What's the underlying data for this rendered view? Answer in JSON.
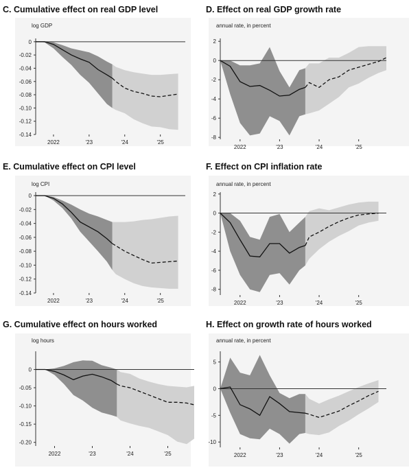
{
  "chart_data": [
    {
      "id": "C",
      "type": "line",
      "title": "C. Cumulative effect on real GDP level",
      "ylabel": "log GDP",
      "ylim": [
        -0.14,
        0.005
      ],
      "yticks": [
        0,
        -0.02,
        -0.04,
        -0.06,
        -0.08,
        -0.1,
        -0.12,
        -0.14
      ],
      "ytick_labels": [
        "0",
        "-0.02",
        "-0.04",
        "-0.06",
        "-0.08",
        "-0.10",
        "-0.12",
        "-0.14"
      ],
      "xlim": [
        2021.5,
        2025.7
      ],
      "xticks": [
        2022,
        2023,
        2024,
        2025
      ],
      "xtick_labels": [
        "2022",
        "'23",
        "'24",
        "'25"
      ],
      "split_x": 2023.65,
      "x": [
        2021.5,
        2021.75,
        2022,
        2022.25,
        2022.5,
        2022.75,
        2023,
        2023.25,
        2023.5,
        2023.65,
        2023.75,
        2024,
        2024.25,
        2024.5,
        2024.75,
        2025,
        2025.25,
        2025.5
      ],
      "series": [
        {
          "role": "estimate",
          "values": [
            0,
            0,
            -0.004,
            -0.012,
            -0.02,
            -0.026,
            -0.031,
            -0.042,
            -0.05,
            -0.055,
            -0.06,
            -0.07,
            -0.075,
            -0.078,
            -0.082,
            -0.083,
            -0.081,
            -0.079
          ]
        },
        {
          "role": "upper",
          "values": [
            0,
            0,
            -0.001,
            -0.005,
            -0.01,
            -0.013,
            -0.016,
            -0.022,
            -0.03,
            -0.034,
            -0.038,
            -0.043,
            -0.046,
            -0.048,
            -0.05,
            -0.05,
            -0.049,
            -0.048
          ]
        },
        {
          "role": "lower",
          "values": [
            0,
            -0.001,
            -0.01,
            -0.023,
            -0.035,
            -0.05,
            -0.062,
            -0.078,
            -0.094,
            -0.1,
            -0.103,
            -0.108,
            -0.117,
            -0.123,
            -0.128,
            -0.129,
            -0.132,
            -0.133
          ]
        }
      ]
    },
    {
      "id": "D",
      "type": "line",
      "title": "D. Effect on real GDP growth rate",
      "ylabel": "annual rate, in percent",
      "ylim": [
        -8.2,
        2.3
      ],
      "yticks": [
        2,
        0,
        -2,
        -4,
        -6,
        -8
      ],
      "ytick_labels": [
        "2",
        "0",
        "-2",
        "-4",
        "-6",
        "-8"
      ],
      "xlim": [
        2021.5,
        2025.7
      ],
      "xticks": [
        2022,
        2023,
        2024,
        2025
      ],
      "xtick_labels": [
        "2022",
        "'23",
        "'24",
        "'25"
      ],
      "split_x": 2023.65,
      "x": [
        2021.5,
        2021.75,
        2022,
        2022.25,
        2022.5,
        2022.75,
        2023,
        2023.25,
        2023.5,
        2023.65,
        2023.75,
        2024,
        2024.25,
        2024.5,
        2024.75,
        2025,
        2025.25,
        2025.5,
        2025.7
      ],
      "series": [
        {
          "role": "estimate",
          "values": [
            0,
            -0.6,
            -2.2,
            -2.7,
            -2.6,
            -3.1,
            -3.7,
            -3.6,
            -3.0,
            -2.8,
            -2.3,
            -2.8,
            -2.0,
            -1.7,
            -1.0,
            -0.7,
            -0.4,
            -0.1,
            0.3
          ]
        },
        {
          "role": "upper",
          "values": [
            0,
            0,
            -0.5,
            -0.5,
            -0.3,
            1.4,
            -1.1,
            -2.8,
            -1.0,
            -0.8,
            -0.3,
            -0.3,
            0.3,
            0.3,
            0.8,
            1.4,
            1.5,
            1.5,
            1.5
          ]
        },
        {
          "role": "lower",
          "values": [
            0,
            -3.5,
            -6.5,
            -7.8,
            -7.6,
            -5.8,
            -6.3,
            -7.8,
            -5.8,
            -5.6,
            -5.5,
            -5.2,
            -4.5,
            -3.8,
            -2.8,
            -2.4,
            -1.8,
            -1.3,
            -1.0
          ]
        }
      ]
    },
    {
      "id": "E",
      "type": "line",
      "title": "E. Cumulative effect on CPI level",
      "ylabel": "log CPI",
      "ylim": [
        -0.14,
        0.005
      ],
      "yticks": [
        0,
        -0.02,
        -0.04,
        -0.06,
        -0.08,
        -0.1,
        -0.12,
        -0.14
      ],
      "ytick_labels": [
        "0",
        "-0.02",
        "-0.04",
        "-0.06",
        "-0.08",
        "-0.10",
        "-0.12",
        "-0.14"
      ],
      "xlim": [
        2021.5,
        2025.7
      ],
      "xticks": [
        2022,
        2023,
        2024,
        2025
      ],
      "xtick_labels": [
        "2022",
        "'23",
        "'24",
        "'25"
      ],
      "split_x": 2023.65,
      "x": [
        2021.5,
        2021.75,
        2022,
        2022.25,
        2022.5,
        2022.75,
        2023,
        2023.25,
        2023.5,
        2023.65,
        2023.75,
        2024,
        2024.25,
        2024.5,
        2024.75,
        2025,
        2025.25,
        2025.5
      ],
      "series": [
        {
          "role": "estimate",
          "values": [
            0,
            0,
            -0.004,
            -0.012,
            -0.024,
            -0.038,
            -0.045,
            -0.052,
            -0.062,
            -0.069,
            -0.072,
            -0.08,
            -0.086,
            -0.092,
            -0.097,
            -0.096,
            -0.095,
            -0.094
          ]
        },
        {
          "role": "upper",
          "values": [
            0,
            0,
            -0.002,
            -0.007,
            -0.013,
            -0.02,
            -0.026,
            -0.03,
            -0.035,
            -0.038,
            -0.038,
            -0.038,
            -0.037,
            -0.035,
            -0.034,
            -0.032,
            -0.03,
            -0.029
          ]
        },
        {
          "role": "lower",
          "values": [
            0,
            0,
            -0.007,
            -0.018,
            -0.033,
            -0.052,
            -0.066,
            -0.08,
            -0.095,
            -0.107,
            -0.113,
            -0.12,
            -0.126,
            -0.13,
            -0.132,
            -0.133,
            -0.134,
            -0.134
          ]
        }
      ]
    },
    {
      "id": "F",
      "type": "line",
      "title": "F. Effect on CPI inflation rate",
      "ylabel": "annual rate, in percent",
      "ylim": [
        -8.6,
        2.2
      ],
      "yticks": [
        2,
        0,
        -2,
        -4,
        -6,
        -8
      ],
      "ytick_labels": [
        "2",
        "0",
        "-2",
        "-4",
        "-6",
        "-8"
      ],
      "xlim": [
        2021.5,
        2025.7
      ],
      "xticks": [
        2022,
        2023,
        2024,
        2025
      ],
      "xtick_labels": [
        "2022",
        "'23",
        "'24",
        "'25"
      ],
      "split_x": 2023.65,
      "x": [
        2021.5,
        2021.75,
        2022,
        2022.25,
        2022.5,
        2022.75,
        2023,
        2023.25,
        2023.5,
        2023.65,
        2023.75,
        2024,
        2024.25,
        2024.5,
        2024.75,
        2025,
        2025.25,
        2025.5
      ],
      "series": [
        {
          "role": "estimate",
          "values": [
            0,
            -1.0,
            -2.8,
            -4.5,
            -4.6,
            -3.2,
            -3.2,
            -4.2,
            -3.6,
            -3.4,
            -2.5,
            -2.0,
            -1.4,
            -0.9,
            -0.5,
            -0.2,
            -0.1,
            0.0
          ]
        },
        {
          "role": "upper",
          "values": [
            0,
            0,
            -0.8,
            -2.5,
            -2.8,
            -0.4,
            -0.1,
            -2.0,
            -1.0,
            -0.4,
            0.2,
            0.5,
            0.3,
            0.6,
            0.9,
            1.1,
            1.2,
            1.2
          ]
        },
        {
          "role": "lower",
          "values": [
            0,
            -4.0,
            -6.5,
            -8.0,
            -8.3,
            -6.5,
            -6.3,
            -7.5,
            -6.0,
            -5.5,
            -4.8,
            -3.8,
            -3.0,
            -2.4,
            -1.9,
            -1.3,
            -1.0,
            -0.8
          ]
        }
      ]
    },
    {
      "id": "G",
      "type": "line",
      "title": "G. Cumulative effect on hours worked",
      "ylabel": "log hours",
      "ylim": [
        -0.21,
        0.05
      ],
      "yticks": [
        0,
        -0.05,
        -0.1,
        -0.15,
        -0.2
      ],
      "ytick_labels": [
        "0",
        "-0.05",
        "-0.10",
        "-0.15",
        "-0.20"
      ],
      "xlim": [
        2021.5,
        2025.7
      ],
      "xticks": [
        2022,
        2023,
        2024,
        2025
      ],
      "xtick_labels": [
        "2022",
        "'23",
        "'24",
        "'25"
      ],
      "split_x": 2023.65,
      "x": [
        2021.5,
        2021.75,
        2022,
        2022.25,
        2022.5,
        2022.75,
        2023,
        2023.25,
        2023.5,
        2023.65,
        2023.75,
        2024,
        2024.25,
        2024.5,
        2024.75,
        2025,
        2025.25,
        2025.5,
        2025.7
      ],
      "series": [
        {
          "role": "estimate",
          "values": [
            0,
            0,
            -0.005,
            -0.015,
            -0.028,
            -0.018,
            -0.013,
            -0.02,
            -0.03,
            -0.04,
            -0.045,
            -0.05,
            -0.06,
            -0.07,
            -0.08,
            -0.09,
            -0.09,
            -0.092,
            -0.097
          ]
        },
        {
          "role": "upper",
          "values": [
            0,
            0,
            0.003,
            0.01,
            0.02,
            0.025,
            0.024,
            0.012,
            0.005,
            0.0,
            -0.007,
            -0.012,
            -0.025,
            -0.033,
            -0.04,
            -0.045,
            -0.047,
            -0.049,
            -0.045
          ]
        },
        {
          "role": "lower",
          "values": [
            0,
            0,
            -0.015,
            -0.04,
            -0.07,
            -0.085,
            -0.105,
            -0.118,
            -0.125,
            -0.13,
            -0.14,
            -0.148,
            -0.155,
            -0.16,
            -0.17,
            -0.18,
            -0.198,
            -0.205,
            -0.19
          ]
        }
      ]
    },
    {
      "id": "H",
      "type": "line",
      "title": "H. Effect on growth rate of hours worked",
      "ylabel": "annual rate, in percent",
      "ylim": [
        -11,
        7
      ],
      "yticks": [
        5,
        0,
        -5,
        -10
      ],
      "ytick_labels": [
        "5",
        "0",
        "-5",
        "-10"
      ],
      "xlim": [
        2021.5,
        2025.7
      ],
      "xticks": [
        2022,
        2023,
        2024,
        2025
      ],
      "xtick_labels": [
        "2022",
        "'23",
        "'24",
        "'25"
      ],
      "split_x": 2023.65,
      "x": [
        2021.5,
        2021.75,
        2022,
        2022.25,
        2022.5,
        2022.75,
        2023,
        2023.25,
        2023.5,
        2023.65,
        2023.75,
        2024,
        2024.25,
        2024.5,
        2024.75,
        2025,
        2025.25,
        2025.5
      ],
      "series": [
        {
          "role": "estimate",
          "values": [
            0,
            0.3,
            -3.0,
            -3.8,
            -5.0,
            -1.5,
            -2.8,
            -4.3,
            -4.5,
            -4.6,
            -4.8,
            -5.4,
            -4.8,
            -4.2,
            -3.2,
            -2.3,
            -1.3,
            -0.5
          ]
        },
        {
          "role": "upper",
          "values": [
            0,
            5.8,
            3.0,
            2.5,
            6.3,
            2.5,
            -0.8,
            -1.8,
            -1.0,
            -1.0,
            -1.9,
            -2.8,
            -2.0,
            -1.3,
            -0.5,
            0.3,
            1.0,
            1.6
          ]
        },
        {
          "role": "lower",
          "values": [
            0,
            -4.5,
            -8.5,
            -9.3,
            -9.5,
            -7.5,
            -8.5,
            -10.3,
            -8.5,
            -8.3,
            -8.5,
            -8.7,
            -8.2,
            -7.0,
            -6.0,
            -4.8,
            -3.7,
            -2.5
          ]
        }
      ]
    }
  ],
  "colors": {
    "band_dark": "#8f8f8f",
    "band_light": "#d1d1d1",
    "panel_bg": "#f4f4f4",
    "line": "#111111",
    "axis": "#333333"
  }
}
